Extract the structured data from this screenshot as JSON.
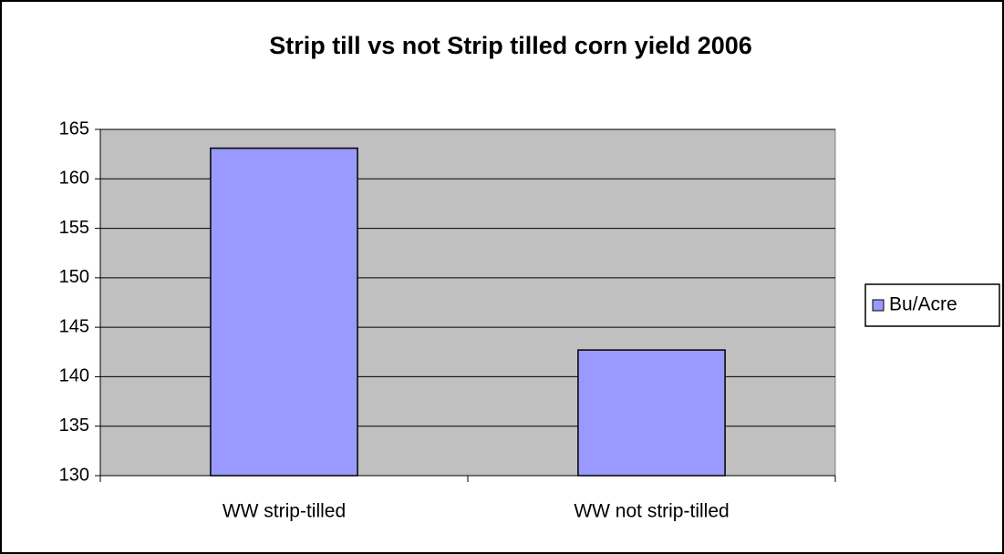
{
  "chart_data": {
    "type": "bar",
    "title": "Strip till vs not Strip tilled corn yield 2006",
    "categories": [
      "WW strip-tilled",
      "WW not strip-tilled"
    ],
    "series": [
      {
        "name": "Bu/Acre",
        "color": "#9999ff",
        "values": [
          163.1,
          142.7
        ]
      }
    ],
    "ylim": [
      130,
      165
    ],
    "yticks": [
      130,
      135,
      140,
      145,
      150,
      155,
      160,
      165
    ],
    "grid": true,
    "legend": "right",
    "plot_background": "#c0c0c0"
  }
}
